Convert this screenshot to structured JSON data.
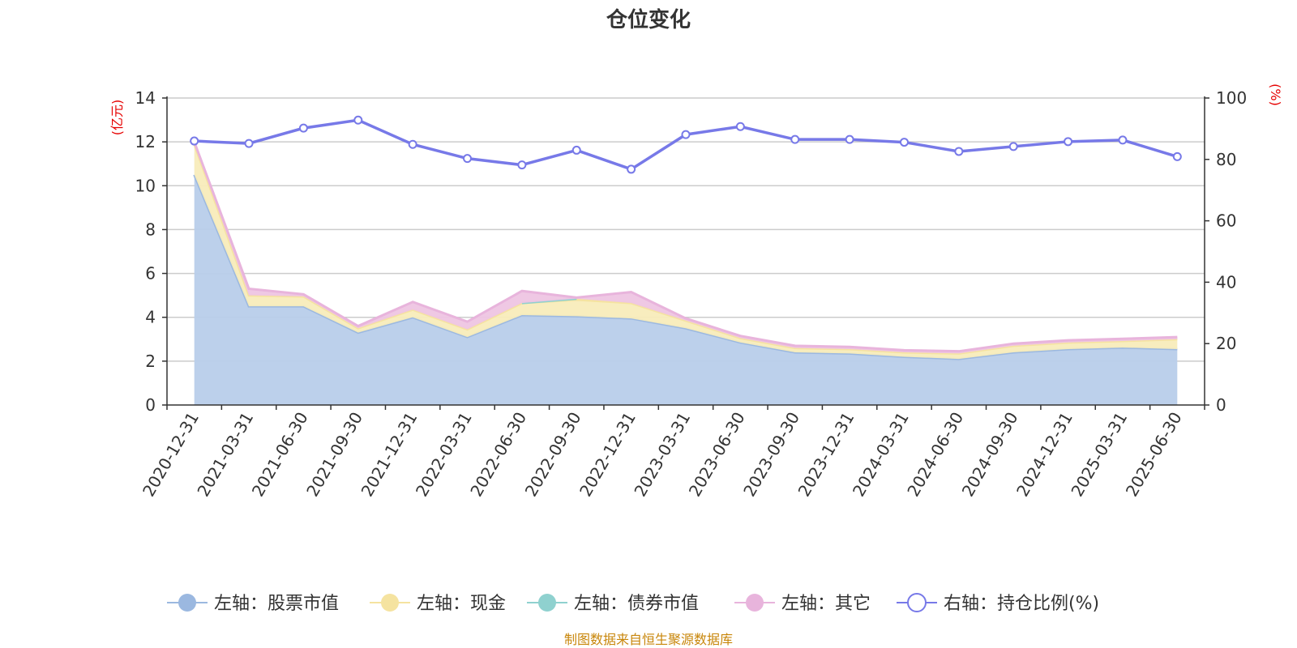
{
  "chart_data": {
    "type": "area",
    "title": "仓位变化",
    "left_unit": "(亿元)",
    "right_unit": "(%)",
    "left_ylim": [
      0,
      14
    ],
    "left_ticks": [
      "0",
      "2",
      "4",
      "6",
      "8",
      "10",
      "12",
      "14"
    ],
    "right_ylim": [
      0,
      100
    ],
    "right_ticks": [
      "0",
      "20",
      "40",
      "60",
      "80",
      "100"
    ],
    "categories": [
      "2020-12-31",
      "2021-03-31",
      "2021-06-30",
      "2021-09-30",
      "2021-12-31",
      "2022-03-31",
      "2022-06-30",
      "2022-09-30",
      "2022-12-31",
      "2023-03-31",
      "2023-06-30",
      "2023-09-30",
      "2023-12-31",
      "2024-03-31",
      "2024-06-30",
      "2024-09-30",
      "2024-12-31",
      "2025-03-31",
      "2025-06-30"
    ],
    "grid": true,
    "legend_position": "bottom",
    "series": [
      {
        "name": "左轴：股票市值",
        "axis": "left",
        "color": "#9bb8e0",
        "fill": "#b8cdea",
        "values": [
          10.5,
          4.5,
          4.5,
          3.3,
          4.0,
          3.1,
          4.1,
          4.05,
          3.95,
          3.5,
          2.85,
          2.4,
          2.35,
          2.2,
          2.1,
          2.4,
          2.55,
          2.62,
          2.55
        ]
      },
      {
        "name": "左轴：现金",
        "axis": "left",
        "color": "#f5e3a0",
        "fill": "#f8ecbb",
        "values": [
          1.4,
          0.5,
          0.45,
          0.2,
          0.35,
          0.35,
          0.55,
          0.75,
          0.7,
          0.35,
          0.2,
          0.2,
          0.2,
          0.2,
          0.25,
          0.3,
          0.3,
          0.3,
          0.45
        ]
      },
      {
        "name": "左轴：债券市值",
        "axis": "left",
        "color": "#8fd1cf",
        "fill": "#a9dcd9",
        "values": [
          null,
          null,
          null,
          null,
          null,
          null,
          0.0,
          0.05,
          null,
          null,
          null,
          null,
          null,
          null,
          null,
          null,
          null,
          null,
          null
        ]
      },
      {
        "name": "左轴：其它",
        "axis": "left",
        "color": "#e8b4dc",
        "fill": "#eec5e3",
        "values": [
          0.1,
          0.3,
          0.1,
          0.1,
          0.35,
          0.35,
          0.55,
          0.05,
          0.5,
          0.1,
          0.1,
          0.1,
          0.1,
          0.1,
          0.1,
          0.1,
          0.1,
          0.1,
          0.1
        ]
      },
      {
        "name": "右轴：持仓比例(%)",
        "axis": "right",
        "color": "#7779e8",
        "values": [
          86.0,
          85.2,
          90.2,
          92.8,
          84.9,
          80.3,
          78.2,
          83.0,
          76.8,
          88.1,
          90.7,
          86.5,
          86.5,
          85.6,
          82.6,
          84.2,
          85.8,
          86.3,
          80.9
        ]
      }
    ]
  },
  "footer": "制图数据来自恒生聚源数据库"
}
